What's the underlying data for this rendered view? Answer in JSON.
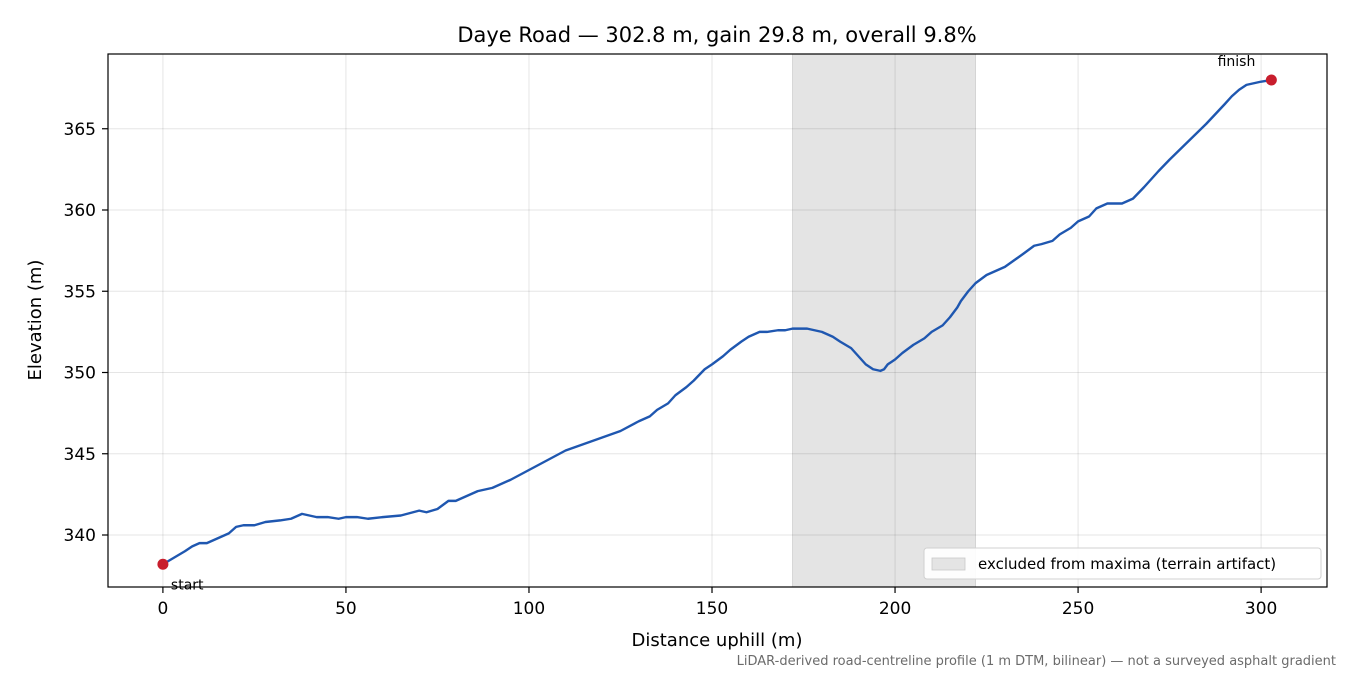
{
  "chart_data": {
    "type": "line",
    "title": "Daye Road — 302.8 m, gain 29.8 m, overall 9.8%",
    "xlabel": "Distance uphill (m)",
    "ylabel": "Elevation (m)",
    "xlim": [
      -15,
      318
    ],
    "ylim": [
      336.8,
      369.6
    ],
    "xticks": [
      0,
      50,
      100,
      150,
      200,
      250,
      300
    ],
    "yticks": [
      340,
      345,
      350,
      355,
      360,
      365
    ],
    "grid": true,
    "legend_position": "lower-right",
    "excluded_region": {
      "x_start": 172,
      "x_end": 222,
      "label": "excluded from maxima (terrain artifact)",
      "color": "#e4e4e4"
    },
    "line_color": "#1f57b0",
    "marker_color": "#c81e2d",
    "series": [
      {
        "x": [
          0,
          3,
          6,
          8,
          10,
          12,
          15,
          18,
          20,
          22,
          25,
          28,
          32,
          35,
          38,
          42,
          45,
          48,
          50,
          53,
          56,
          60,
          65,
          70,
          72,
          75,
          78,
          80,
          83,
          86,
          90,
          95,
          100,
          105,
          110,
          115,
          120,
          125,
          130,
          133,
          135,
          138,
          140,
          143,
          145,
          148,
          150,
          153,
          155,
          158,
          160,
          163,
          165,
          168,
          170,
          172,
          174,
          176,
          178,
          180,
          183,
          185,
          188,
          190,
          192,
          194,
          196,
          197,
          198,
          200,
          202,
          205,
          208,
          210,
          213,
          215,
          217,
          218,
          220,
          222,
          225,
          230,
          235,
          238,
          240,
          243,
          245,
          248,
          250,
          253,
          255,
          258,
          262,
          265,
          268,
          272,
          275,
          280,
          285,
          290,
          292,
          294,
          296,
          298,
          300,
          302.8
        ],
        "y": [
          338.2,
          338.6,
          339.0,
          339.3,
          339.5,
          339.5,
          339.8,
          340.1,
          340.5,
          340.6,
          340.6,
          340.8,
          340.9,
          341.0,
          341.3,
          341.1,
          341.1,
          341.0,
          341.1,
          341.1,
          341.0,
          341.1,
          341.2,
          341.5,
          341.4,
          341.6,
          342.1,
          342.1,
          342.4,
          342.7,
          342.9,
          343.4,
          344.0,
          344.6,
          345.2,
          345.6,
          346.0,
          346.4,
          347.0,
          347.3,
          347.7,
          348.1,
          348.6,
          349.1,
          349.5,
          350.2,
          350.5,
          351.0,
          351.4,
          351.9,
          352.2,
          352.5,
          352.5,
          352.6,
          352.6,
          352.7,
          352.7,
          352.7,
          352.6,
          352.5,
          352.2,
          351.9,
          351.5,
          351.0,
          350.5,
          350.2,
          350.1,
          350.2,
          350.5,
          350.8,
          351.2,
          351.7,
          352.1,
          352.5,
          352.9,
          353.4,
          354.0,
          354.4,
          355.0,
          355.5,
          356.0,
          356.5,
          357.3,
          357.8,
          357.9,
          358.1,
          358.5,
          358.9,
          359.3,
          359.6,
          360.1,
          360.4,
          360.4,
          360.7,
          361.4,
          362.4,
          363.1,
          364.2,
          365.3,
          366.5,
          367.0,
          367.4,
          367.7,
          367.8,
          367.9,
          368.0
        ]
      }
    ],
    "annotations": [
      {
        "text": "start",
        "x": 0,
        "y": 338.2
      },
      {
        "text": "finish",
        "x": 302.8,
        "y": 368.0
      }
    ],
    "footnote": "LiDAR-derived road-centreline profile (1 m DTM, bilinear) — not a surveyed asphalt gradient"
  }
}
